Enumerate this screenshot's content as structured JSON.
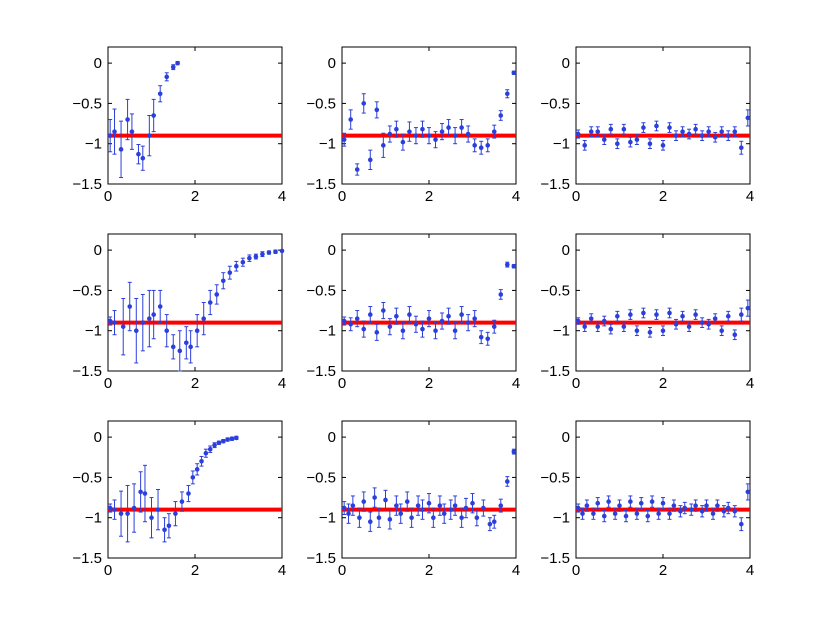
{
  "colors": {
    "data": "#2b3fdc",
    "reference": "#ff0000",
    "axes": "#000000",
    "background": "#ffffff"
  },
  "chart_data": [
    {
      "type": "scatter",
      "row": 1,
      "col": 1,
      "xlim": [
        0,
        4
      ],
      "ylim": [
        -1.5,
        0.2
      ],
      "xticks": [
        0,
        2,
        4
      ],
      "xtick_labels": [
        "0",
        "2",
        "4"
      ],
      "yticks": [
        -1.5,
        -1,
        -0.5,
        0
      ],
      "ytick_labels": [
        "−1.5",
        "−1",
        "−0.5",
        "0"
      ],
      "reference_y": -0.9,
      "grid": false,
      "series": [
        {
          "x": [
            0.05,
            0.15,
            0.3,
            0.45,
            0.55,
            0.7,
            0.8,
            0.95,
            1.05,
            1.2,
            1.35,
            1.5,
            1.6
          ],
          "y": [
            -0.9,
            -0.85,
            -1.07,
            -0.7,
            -0.85,
            -1.13,
            -1.18,
            -0.9,
            -0.65,
            -0.38,
            -0.17,
            -0.05,
            0.0
          ],
          "err": [
            0.2,
            0.28,
            0.35,
            0.25,
            0.22,
            0.12,
            0.15,
            0.25,
            0.2,
            0.1,
            0.05,
            0.03,
            0.02
          ]
        }
      ]
    },
    {
      "type": "scatter",
      "row": 1,
      "col": 2,
      "xlim": [
        0,
        4
      ],
      "ylim": [
        -1.5,
        0.2
      ],
      "xticks": [
        0,
        2,
        4
      ],
      "xtick_labels": [
        "0",
        "2",
        "4"
      ],
      "yticks": [
        -1.5,
        -1,
        -0.5,
        0
      ],
      "ytick_labels": [
        "−1.5",
        "−1",
        "−0.5",
        "0"
      ],
      "reference_y": -0.9,
      "grid": false,
      "series": [
        {
          "x": [
            0.05,
            0.2,
            0.35,
            0.5,
            0.65,
            0.8,
            0.95,
            1.1,
            1.25,
            1.4,
            1.55,
            1.7,
            1.85,
            2.0,
            2.15,
            2.3,
            2.45,
            2.6,
            2.75,
            2.9,
            3.05,
            3.2,
            3.35,
            3.5,
            3.65,
            3.8,
            3.95
          ],
          "y": [
            -0.95,
            -0.7,
            -1.32,
            -0.5,
            -1.2,
            -0.58,
            -1.02,
            -0.88,
            -0.82,
            -0.98,
            -0.85,
            -0.9,
            -0.82,
            -0.9,
            -0.95,
            -0.85,
            -0.8,
            -0.9,
            -0.8,
            -0.88,
            -1.02,
            -1.05,
            -1.02,
            -0.85,
            -0.65,
            -0.38,
            -0.12
          ],
          "err": [
            0.08,
            0.12,
            0.07,
            0.12,
            0.12,
            0.1,
            0.15,
            0.1,
            0.1,
            0.1,
            0.12,
            0.1,
            0.1,
            0.1,
            0.1,
            0.1,
            0.1,
            0.1,
            0.1,
            0.1,
            0.08,
            0.08,
            0.08,
            0.08,
            0.06,
            0.05,
            0.02
          ]
        }
      ]
    },
    {
      "type": "scatter",
      "row": 1,
      "col": 3,
      "xlim": [
        0,
        4
      ],
      "ylim": [
        -1.5,
        0.2
      ],
      "xticks": [
        0,
        2,
        4
      ],
      "xtick_labels": [
        "0",
        "2",
        "4"
      ],
      "yticks": [
        -1.5,
        -1,
        -0.5,
        0
      ],
      "ytick_labels": [
        "−1.5",
        "−1",
        "−0.5",
        "0"
      ],
      "reference_y": -0.9,
      "grid": false,
      "series": [
        {
          "x": [
            0.05,
            0.2,
            0.35,
            0.5,
            0.65,
            0.8,
            0.95,
            1.1,
            1.25,
            1.4,
            1.55,
            1.7,
            1.85,
            2.0,
            2.15,
            2.3,
            2.45,
            2.6,
            2.75,
            2.9,
            3.05,
            3.2,
            3.35,
            3.5,
            3.65,
            3.8,
            3.95
          ],
          "y": [
            -0.88,
            -1.02,
            -0.85,
            -0.85,
            -0.95,
            -0.82,
            -1.0,
            -0.82,
            -0.98,
            -0.95,
            -0.8,
            -1.0,
            -0.78,
            -1.02,
            -0.8,
            -0.9,
            -0.85,
            -0.88,
            -0.82,
            -0.9,
            -0.85,
            -0.92,
            -0.85,
            -0.9,
            -0.85,
            -1.05,
            -0.68
          ],
          "err": [
            0.05,
            0.06,
            0.06,
            0.06,
            0.06,
            0.06,
            0.06,
            0.06,
            0.06,
            0.06,
            0.06,
            0.06,
            0.06,
            0.06,
            0.06,
            0.06,
            0.06,
            0.06,
            0.06,
            0.06,
            0.06,
            0.06,
            0.06,
            0.06,
            0.06,
            0.08,
            0.1
          ]
        }
      ]
    },
    {
      "type": "scatter",
      "row": 2,
      "col": 1,
      "xlim": [
        0,
        4
      ],
      "ylim": [
        -1.5,
        0.2
      ],
      "xticks": [
        0,
        2,
        4
      ],
      "xtick_labels": [
        "0",
        "2",
        "4"
      ],
      "yticks": [
        -1.5,
        -1,
        -0.5,
        0
      ],
      "ytick_labels": [
        "−1.5",
        "−1",
        "−0.5",
        "0"
      ],
      "reference_y": -0.9,
      "grid": false,
      "series": [
        {
          "x": [
            0.05,
            0.15,
            0.35,
            0.5,
            0.65,
            0.8,
            0.95,
            1.05,
            1.2,
            1.35,
            1.5,
            1.65,
            1.8,
            1.9,
            2.05,
            2.2,
            2.35,
            2.5,
            2.65,
            2.8,
            2.95,
            3.1,
            3.25,
            3.4,
            3.55,
            3.7,
            3.85,
            4.0
          ],
          "y": [
            -0.88,
            -0.9,
            -0.95,
            -0.7,
            -1.0,
            -0.9,
            -0.85,
            -0.8,
            -0.7,
            -1.0,
            -1.2,
            -1.25,
            -1.15,
            -1.2,
            -1.0,
            -0.85,
            -0.65,
            -0.55,
            -0.38,
            -0.28,
            -0.2,
            -0.15,
            -0.1,
            -0.08,
            -0.05,
            -0.03,
            -0.02,
            -0.01
          ],
          "err": [
            0.05,
            0.15,
            0.35,
            0.3,
            0.4,
            0.35,
            0.35,
            0.3,
            0.2,
            0.2,
            0.15,
            0.25,
            0.2,
            0.2,
            0.2,
            0.2,
            0.15,
            0.12,
            0.1,
            0.08,
            0.06,
            0.05,
            0.04,
            0.03,
            0.03,
            0.02,
            0.02,
            0.01
          ]
        }
      ]
    },
    {
      "type": "scatter",
      "row": 2,
      "col": 2,
      "xlim": [
        0,
        4
      ],
      "ylim": [
        -1.5,
        0.2
      ],
      "xticks": [
        0,
        2,
        4
      ],
      "xtick_labels": [
        "0",
        "2",
        "4"
      ],
      "yticks": [
        -1.5,
        -1,
        -0.5,
        0
      ],
      "ytick_labels": [
        "−1.5",
        "−1",
        "−0.5",
        "0"
      ],
      "reference_y": -0.9,
      "grid": false,
      "series": [
        {
          "x": [
            0.05,
            0.2,
            0.35,
            0.5,
            0.65,
            0.8,
            0.95,
            1.1,
            1.25,
            1.4,
            1.55,
            1.7,
            1.85,
            2.0,
            2.15,
            2.3,
            2.45,
            2.6,
            2.75,
            2.9,
            3.05,
            3.2,
            3.35,
            3.5,
            3.65,
            3.8,
            3.95
          ],
          "y": [
            -0.88,
            -0.92,
            -0.85,
            -0.98,
            -0.8,
            -1.02,
            -0.75,
            -0.95,
            -0.82,
            -1.0,
            -0.8,
            -0.92,
            -0.98,
            -0.85,
            -1.0,
            -0.88,
            -0.82,
            -1.0,
            -0.8,
            -0.9,
            -0.85,
            -1.08,
            -1.1,
            -0.95,
            -0.55,
            -0.18,
            -0.2
          ],
          "err": [
            0.05,
            0.08,
            0.1,
            0.1,
            0.1,
            0.1,
            0.1,
            0.1,
            0.1,
            0.1,
            0.1,
            0.1,
            0.1,
            0.1,
            0.1,
            0.1,
            0.1,
            0.1,
            0.1,
            0.1,
            0.1,
            0.08,
            0.08,
            0.08,
            0.06,
            0.03,
            0.02
          ]
        }
      ]
    },
    {
      "type": "scatter",
      "row": 2,
      "col": 3,
      "xlim": [
        0,
        4
      ],
      "ylim": [
        -1.5,
        0.2
      ],
      "xticks": [
        0,
        2,
        4
      ],
      "xtick_labels": [
        "0",
        "2",
        "4"
      ],
      "yticks": [
        -1.5,
        -1,
        -0.5,
        0
      ],
      "ytick_labels": [
        "−1.5",
        "−1",
        "−0.5",
        "0"
      ],
      "reference_y": -0.9,
      "grid": false,
      "series": [
        {
          "x": [
            0.05,
            0.2,
            0.35,
            0.5,
            0.65,
            0.8,
            0.95,
            1.1,
            1.25,
            1.4,
            1.55,
            1.7,
            1.85,
            2.0,
            2.15,
            2.3,
            2.45,
            2.6,
            2.75,
            2.9,
            3.05,
            3.2,
            3.35,
            3.5,
            3.65,
            3.8,
            3.95
          ],
          "y": [
            -0.88,
            -0.95,
            -0.85,
            -0.95,
            -0.88,
            -0.98,
            -0.82,
            -0.95,
            -0.8,
            -1.0,
            -0.78,
            -1.02,
            -0.8,
            -1.0,
            -0.78,
            -0.92,
            -0.82,
            -0.95,
            -0.8,
            -0.9,
            -0.92,
            -0.85,
            -1.0,
            -0.82,
            -1.05,
            -0.8,
            -0.72
          ],
          "err": [
            0.04,
            0.06,
            0.06,
            0.06,
            0.06,
            0.06,
            0.06,
            0.06,
            0.06,
            0.06,
            0.06,
            0.06,
            0.06,
            0.06,
            0.06,
            0.06,
            0.06,
            0.06,
            0.06,
            0.06,
            0.06,
            0.06,
            0.06,
            0.06,
            0.06,
            0.08,
            0.1
          ]
        }
      ]
    },
    {
      "type": "scatter",
      "row": 3,
      "col": 1,
      "xlim": [
        0,
        4
      ],
      "ylim": [
        -1.5,
        0.2
      ],
      "xticks": [
        0,
        2,
        4
      ],
      "xtick_labels": [
        "0",
        "2",
        "4"
      ],
      "yticks": [
        -1.5,
        -1,
        -0.5,
        0
      ],
      "ytick_labels": [
        "−1.5",
        "−1",
        "−0.5",
        "0"
      ],
      "reference_y": -0.9,
      "grid": false,
      "series": [
        {
          "x": [
            0.05,
            0.15,
            0.3,
            0.45,
            0.6,
            0.75,
            0.85,
            1.0,
            1.15,
            1.3,
            1.4,
            1.55,
            1.7,
            1.85,
            1.95,
            2.05,
            2.15,
            2.25,
            2.35,
            2.45,
            2.55,
            2.65,
            2.75,
            2.85,
            2.95
          ],
          "y": [
            -0.88,
            -0.9,
            -0.95,
            -0.95,
            -0.88,
            -0.68,
            -0.7,
            -1.0,
            -0.9,
            -1.15,
            -1.1,
            -0.95,
            -0.8,
            -0.7,
            -0.5,
            -0.4,
            -0.3,
            -0.2,
            -0.15,
            -0.1,
            -0.07,
            -0.05,
            -0.03,
            -0.02,
            -0.01
          ],
          "err": [
            0.05,
            0.12,
            0.28,
            0.35,
            0.3,
            0.25,
            0.35,
            0.25,
            0.25,
            0.15,
            0.15,
            0.15,
            0.12,
            0.1,
            0.08,
            0.07,
            0.06,
            0.05,
            0.04,
            0.03,
            0.02,
            0.02,
            0.02,
            0.02,
            0.02
          ]
        }
      ]
    },
    {
      "type": "scatter",
      "row": 3,
      "col": 2,
      "xlim": [
        0,
        4
      ],
      "ylim": [
        -1.5,
        0.2
      ],
      "xticks": [
        0,
        2,
        4
      ],
      "xtick_labels": [
        "0",
        "2",
        "4"
      ],
      "yticks": [
        -1.5,
        -1,
        -0.5,
        0
      ],
      "ytick_labels": [
        "−1.5",
        "−1",
        "−0.5",
        "0"
      ],
      "reference_y": -0.9,
      "grid": false,
      "series": [
        {
          "x": [
            0.05,
            0.15,
            0.25,
            0.4,
            0.5,
            0.65,
            0.75,
            0.85,
            1.0,
            1.1,
            1.25,
            1.35,
            1.5,
            1.6,
            1.75,
            1.85,
            2.0,
            2.1,
            2.25,
            2.35,
            2.5,
            2.6,
            2.75,
            2.85,
            3.0,
            3.1,
            3.25,
            3.4,
            3.5,
            3.65,
            3.8,
            3.95
          ],
          "y": [
            -0.88,
            -0.95,
            -0.85,
            -1.0,
            -0.8,
            -1.05,
            -0.75,
            -1.0,
            -0.78,
            -1.02,
            -0.85,
            -0.95,
            -0.8,
            -1.0,
            -0.85,
            -0.9,
            -0.82,
            -1.0,
            -0.85,
            -0.95,
            -0.9,
            -0.85,
            -1.0,
            -0.88,
            -0.82,
            -1.0,
            -0.88,
            -1.08,
            -1.05,
            -0.85,
            -0.55,
            -0.18
          ],
          "err": [
            0.08,
            0.12,
            0.12,
            0.12,
            0.12,
            0.12,
            0.12,
            0.12,
            0.12,
            0.12,
            0.12,
            0.12,
            0.12,
            0.12,
            0.12,
            0.12,
            0.12,
            0.12,
            0.12,
            0.12,
            0.12,
            0.12,
            0.12,
            0.12,
            0.12,
            0.1,
            0.1,
            0.08,
            0.08,
            0.08,
            0.06,
            0.03
          ]
        }
      ]
    },
    {
      "type": "scatter",
      "row": 3,
      "col": 3,
      "xlim": [
        0,
        4
      ],
      "ylim": [
        -1.5,
        0.2
      ],
      "xticks": [
        0,
        2,
        4
      ],
      "xtick_labels": [
        "0",
        "2",
        "4"
      ],
      "yticks": [
        -1.5,
        -1,
        -0.5,
        0
      ],
      "ytick_labels": [
        "−1.5",
        "−1",
        "−0.5",
        "0"
      ],
      "reference_y": -0.9,
      "grid": false,
      "series": [
        {
          "x": [
            0.05,
            0.15,
            0.25,
            0.4,
            0.5,
            0.65,
            0.75,
            0.9,
            1.0,
            1.15,
            1.25,
            1.4,
            1.5,
            1.65,
            1.75,
            1.9,
            2.0,
            2.15,
            2.25,
            2.4,
            2.5,
            2.65,
            2.75,
            2.9,
            3.0,
            3.15,
            3.25,
            3.4,
            3.5,
            3.65,
            3.8,
            3.95
          ],
          "y": [
            -0.88,
            -0.95,
            -0.85,
            -0.95,
            -0.82,
            -0.98,
            -0.8,
            -0.95,
            -0.85,
            -0.98,
            -0.8,
            -0.95,
            -0.82,
            -0.98,
            -0.8,
            -0.95,
            -0.82,
            -0.95,
            -0.85,
            -0.92,
            -0.88,
            -0.9,
            -0.85,
            -0.92,
            -0.85,
            -0.95,
            -0.85,
            -0.92,
            -0.88,
            -0.92,
            -1.08,
            -0.68
          ],
          "err": [
            0.05,
            0.07,
            0.07,
            0.07,
            0.07,
            0.07,
            0.07,
            0.07,
            0.07,
            0.07,
            0.07,
            0.07,
            0.07,
            0.07,
            0.07,
            0.07,
            0.07,
            0.07,
            0.07,
            0.07,
            0.07,
            0.07,
            0.07,
            0.07,
            0.07,
            0.07,
            0.07,
            0.07,
            0.07,
            0.07,
            0.08,
            0.1
          ]
        }
      ]
    }
  ]
}
